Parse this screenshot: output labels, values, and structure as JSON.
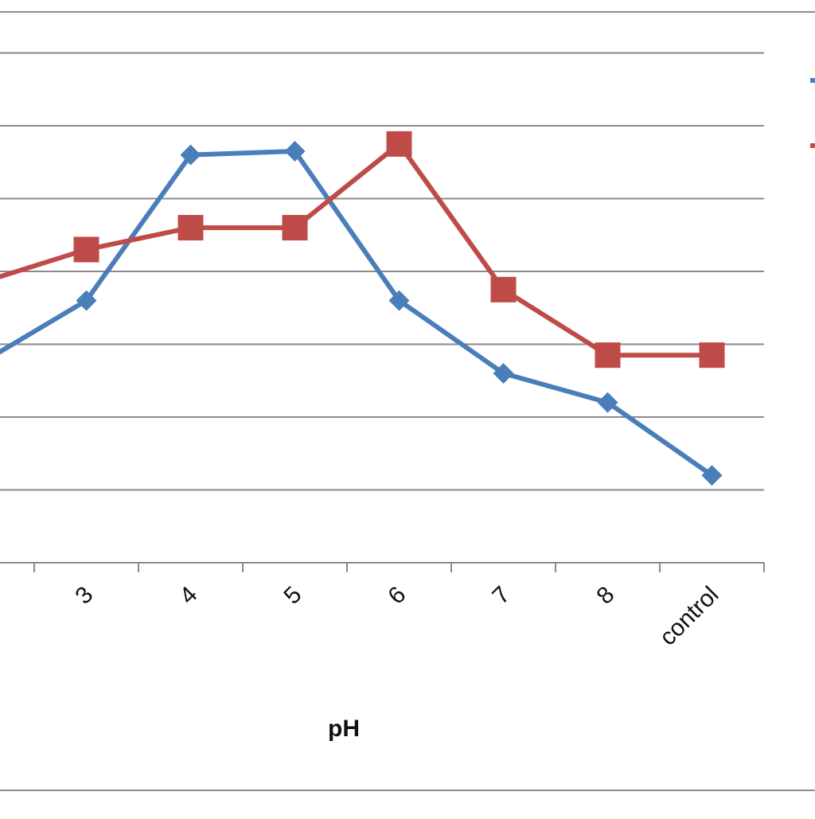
{
  "chart_data": {
    "type": "line",
    "categories": [
      "3",
      "4",
      "5",
      "6",
      "7",
      "8",
      "control"
    ],
    "x_label": "pH",
    "y_range": [
      0,
      7
    ],
    "grid": true,
    "legend_position": "right",
    "series": [
      {
        "color": "#4a7ebb",
        "marker": "diamond",
        "values": [
          3.6,
          5.6,
          5.65,
          3.6,
          2.6,
          2.2,
          1.2
        ]
      },
      {
        "color": "#be4b48",
        "marker": "square",
        "values": [
          4.3,
          4.6,
          4.6,
          5.75,
          3.75,
          2.85,
          2.85
        ]
      }
    ]
  }
}
